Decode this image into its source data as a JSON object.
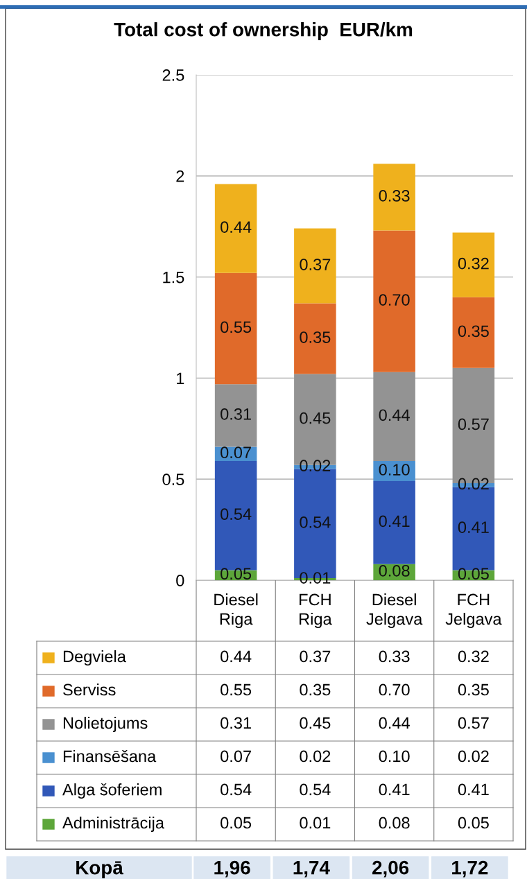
{
  "chart_data": {
    "type": "bar",
    "title": "Total cost of ownership  EUR/km",
    "categories": [
      "Diesel\nRiga",
      "FCH\nRiga",
      "Diesel\nJelgava",
      "FCH\nJelgava"
    ],
    "stacked": true,
    "series": [
      {
        "name": "Administrācija",
        "color": "#5da63a",
        "values": [
          0.05,
          0.01,
          0.08,
          0.05
        ],
        "value_labels": [
          "0.05",
          "0.01",
          "0.08",
          "0.05"
        ]
      },
      {
        "name": "Alga šoferiem",
        "color": "#3158b8",
        "values": [
          0.54,
          0.54,
          0.41,
          0.41
        ],
        "value_labels": [
          "0.54",
          "0.54",
          "0.41",
          "0.41"
        ]
      },
      {
        "name": "Finansēšana",
        "color": "#4a90d0",
        "values": [
          0.07,
          0.02,
          0.1,
          0.02
        ],
        "value_labels": [
          "0.07",
          "0.02",
          "0.10",
          "0.02"
        ]
      },
      {
        "name": "Nolietojums",
        "color": "#939393",
        "values": [
          0.31,
          0.45,
          0.44,
          0.57
        ],
        "value_labels": [
          "0.31",
          "0.45",
          "0.44",
          "0.57"
        ]
      },
      {
        "name": "Serviss",
        "color": "#e06a2a",
        "values": [
          0.55,
          0.35,
          0.7,
          0.35
        ],
        "value_labels": [
          "0.55",
          "0.35",
          "0.70",
          "0.35"
        ]
      },
      {
        "name": "Degviela",
        "color": "#efb11d",
        "values": [
          0.44,
          0.37,
          0.33,
          0.32
        ],
        "value_labels": [
          "0.44",
          "0.37",
          "0.33",
          "0.32"
        ]
      }
    ],
    "ylim": [
      0,
      2.5
    ],
    "yticks": [
      0,
      0.5,
      1,
      1.5,
      2,
      2.5
    ],
    "grid": "y",
    "legend": "bottom",
    "annotations": [
      "Kopā",
      "1,96",
      "1,74",
      "2,06",
      "1,72"
    ]
  }
}
